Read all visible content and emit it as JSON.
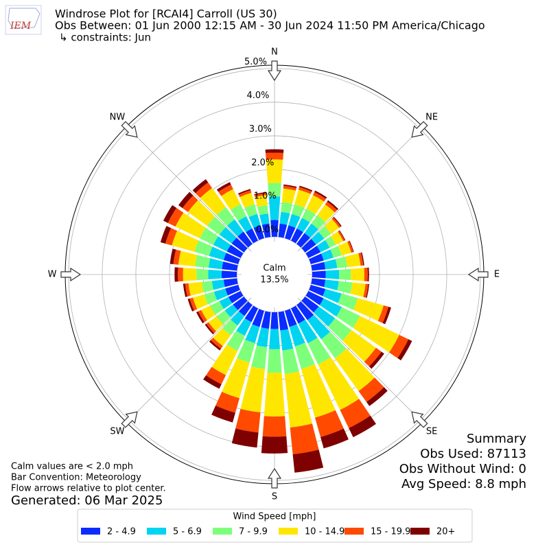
{
  "chart_data": {
    "type": "windrose",
    "title": "Windrose Plot for [RCAI4] Carroll (US 30)",
    "subtitle": "Obs Between: 01 Jun 2000 12:15 AM - 30 Jun 2024 11:50 PM America/Chicago",
    "constraints": "↳ constraints: Jun",
    "logo_text": "IEM",
    "directions": [
      0,
      10,
      20,
      30,
      40,
      50,
      60,
      70,
      80,
      90,
      100,
      110,
      120,
      130,
      140,
      150,
      160,
      170,
      180,
      190,
      200,
      210,
      220,
      230,
      240,
      250,
      260,
      270,
      280,
      290,
      300,
      310,
      320,
      330,
      340,
      350
    ],
    "xticks": [
      {
        "value": 0,
        "label": "N"
      },
      {
        "value": 45,
        "label": "NE"
      },
      {
        "value": 90,
        "label": "E"
      },
      {
        "value": 135,
        "label": "SE"
      },
      {
        "value": 180,
        "label": "S"
      },
      {
        "value": 225,
        "label": "SW"
      },
      {
        "value": 270,
        "label": "W"
      },
      {
        "value": 315,
        "label": "NW"
      }
    ],
    "ylim": [
      0,
      5.1
    ],
    "yticks": [
      {
        "value": 0,
        "label": "0.0%"
      },
      {
        "value": 1,
        "label": "1.0%"
      },
      {
        "value": 2,
        "label": "2.0%"
      },
      {
        "value": 3,
        "label": "3.0%"
      },
      {
        "value": 4,
        "label": "4.0%"
      },
      {
        "value": 5,
        "label": "5.0%"
      }
    ],
    "grid": true,
    "calm": {
      "label": "Calm",
      "value": 13.5,
      "value_label": "13.5%"
    },
    "legend_title": "Wind Speed [mph]",
    "series": [
      {
        "name": "2 - 4.9",
        "color": "#0a2cff",
        "values": [
          0.5,
          0.4,
          0.4,
          0.4,
          0.4,
          0.4,
          0.4,
          0.4,
          0.4,
          0.4,
          0.4,
          0.45,
          0.5,
          0.5,
          0.55,
          0.5,
          0.5,
          0.55,
          0.5,
          0.5,
          0.5,
          0.45,
          0.4,
          0.4,
          0.4,
          0.4,
          0.4,
          0.45,
          0.45,
          0.45,
          0.45,
          0.45,
          0.45,
          0.4,
          0.4,
          0.4
        ]
      },
      {
        "name": "5 - 6.9",
        "color": "#00d4f0",
        "values": [
          0.7,
          0.35,
          0.35,
          0.35,
          0.35,
          0.3,
          0.3,
          0.3,
          0.35,
          0.4,
          0.4,
          0.5,
          0.6,
          0.6,
          0.7,
          0.65,
          0.6,
          0.6,
          0.6,
          0.55,
          0.5,
          0.45,
          0.35,
          0.3,
          0.3,
          0.35,
          0.35,
          0.4,
          0.4,
          0.45,
          0.45,
          0.45,
          0.45,
          0.4,
          0.35,
          0.3
        ]
      },
      {
        "name": "7 - 9.9",
        "color": "#7dff7a",
        "values": [
          0.4,
          0.3,
          0.3,
          0.3,
          0.3,
          0.25,
          0.2,
          0.25,
          0.3,
          0.35,
          0.4,
          0.5,
          0.6,
          0.6,
          0.7,
          0.7,
          0.7,
          0.7,
          0.7,
          0.65,
          0.6,
          0.5,
          0.35,
          0.3,
          0.3,
          0.3,
          0.3,
          0.35,
          0.4,
          0.45,
          0.45,
          0.45,
          0.45,
          0.4,
          0.3,
          0.25
        ]
      },
      {
        "name": "10 - 14.9",
        "color": "#ffe600",
        "values": [
          0.7,
          0.4,
          0.45,
          0.45,
          0.4,
          0.3,
          0.25,
          0.3,
          0.4,
          0.4,
          0.4,
          0.8,
          1.3,
          0.9,
          1.2,
          1.5,
          1.5,
          1.6,
          1.3,
          1.3,
          1.1,
          0.8,
          0.4,
          0.3,
          0.3,
          0.35,
          0.4,
          0.4,
          0.5,
          0.7,
          0.8,
          0.7,
          0.7,
          0.5,
          0.35,
          0.3
        ]
      },
      {
        "name": "15 - 19.9",
        "color": "#ff4a00",
        "values": [
          0.2,
          0.08,
          0.08,
          0.1,
          0.1,
          0.06,
          0.05,
          0.06,
          0.08,
          0.1,
          0.08,
          0.15,
          0.3,
          0.2,
          0.4,
          0.6,
          0.6,
          0.8,
          0.6,
          0.6,
          0.45,
          0.3,
          0.1,
          0.08,
          0.1,
          0.1,
          0.1,
          0.15,
          0.15,
          0.2,
          0.25,
          0.2,
          0.2,
          0.15,
          0.08,
          0.06
        ]
      },
      {
        "name": "20+",
        "color": "#7f0000",
        "values": [
          0.1,
          0.04,
          0.04,
          0.05,
          0.05,
          0.03,
          0.02,
          0.02,
          0.03,
          0.04,
          0.03,
          0.08,
          0.12,
          0.1,
          0.15,
          0.3,
          0.35,
          0.55,
          0.5,
          0.45,
          0.3,
          0.15,
          0.06,
          0.05,
          0.06,
          0.06,
          0.06,
          0.1,
          0.1,
          0.15,
          0.15,
          0.15,
          0.12,
          0.08,
          0.04,
          0.03
        ]
      }
    ],
    "notes": [
      "Calm values are < 2.0 mph",
      "Bar Convention: Meteorology",
      "Flow arrows relative to plot center."
    ],
    "generated": "Generated: 06 Mar 2025",
    "summary": [
      "Summary",
      "Obs Used: 87113",
      "Obs Without Wind: 0",
      "Avg Speed: 8.8 mph"
    ]
  }
}
